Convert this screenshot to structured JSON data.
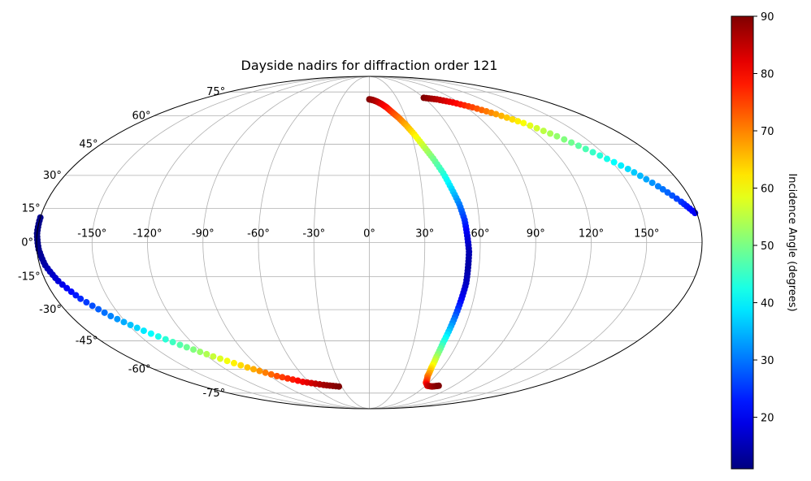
{
  "chart_data": {
    "type": "scatter",
    "projection": "mollweide",
    "title": "Dayside nadirs for diffraction order 121",
    "grid": true,
    "lon_ticks": [
      -150,
      -120,
      -90,
      -60,
      -30,
      0,
      30,
      60,
      90,
      120,
      150
    ],
    "lon_tick_labels": [
      "-150°",
      "-120°",
      "-90°",
      "-60°",
      "-30°",
      "0°",
      "30°",
      "60°",
      "90°",
      "120°",
      "150°"
    ],
    "lat_ticks": [
      75,
      60,
      45,
      30,
      15,
      0,
      -15,
      -30,
      -45,
      -60,
      -75
    ],
    "lat_tick_labels": [
      "75°",
      "60°",
      "45°",
      "30°",
      "15°",
      "0°",
      "-15°",
      "-30°",
      "-45°",
      "-60°",
      "-75°"
    ],
    "colorbar": {
      "label": "Incidence Angle (degrees)",
      "range": [
        11,
        90
      ],
      "ticks": [
        20,
        30,
        40,
        50,
        60,
        70,
        80,
        90
      ],
      "colormap": "jet"
    },
    "series": [
      {
        "points": [
          {
            "lon": 0,
            "lat": 70,
            "inc": 90
          },
          {
            "lon": 4,
            "lat": 69.5,
            "inc": 88
          },
          {
            "lon": 8,
            "lat": 68.5,
            "inc": 86
          },
          {
            "lon": 12,
            "lat": 67,
            "inc": 83
          },
          {
            "lon": 16,
            "lat": 65,
            "inc": 80
          },
          {
            "lon": 20,
            "lat": 62,
            "inc": 76
          },
          {
            "lon": 24,
            "lat": 59,
            "inc": 72
          },
          {
            "lon": 28,
            "lat": 55,
            "inc": 67
          },
          {
            "lon": 32,
            "lat": 50,
            "inc": 62
          },
          {
            "lon": 36,
            "lat": 44,
            "inc": 56
          },
          {
            "lon": 40,
            "lat": 38,
            "inc": 50
          },
          {
            "lon": 44,
            "lat": 31,
            "inc": 44
          },
          {
            "lon": 47,
            "lat": 24,
            "inc": 38
          },
          {
            "lon": 50,
            "lat": 17,
            "inc": 31
          },
          {
            "lon": 52,
            "lat": 10,
            "inc": 25
          },
          {
            "lon": 53,
            "lat": 3,
            "inc": 19
          },
          {
            "lon": 54,
            "lat": -4,
            "inc": 15
          },
          {
            "lon": 54,
            "lat": -11,
            "inc": 14
          },
          {
            "lon": 54,
            "lat": -18,
            "inc": 16
          },
          {
            "lon": 53,
            "lat": -25,
            "inc": 20
          },
          {
            "lon": 52,
            "lat": -32,
            "inc": 27
          },
          {
            "lon": 51,
            "lat": -39,
            "inc": 35
          },
          {
            "lon": 50,
            "lat": -46,
            "inc": 44
          },
          {
            "lon": 50,
            "lat": -53,
            "inc": 53
          },
          {
            "lon": 51,
            "lat": -59,
            "inc": 62
          },
          {
            "lon": 53,
            "lat": -64,
            "inc": 70
          },
          {
            "lon": 57,
            "lat": -68,
            "inc": 77
          },
          {
            "lon": 62,
            "lat": -70,
            "inc": 83
          },
          {
            "lon": 68,
            "lat": -70.5,
            "inc": 87
          },
          {
            "lon": 74,
            "lat": -70,
            "inc": 90
          }
        ]
      },
      {
        "points": [
          {
            "lon": 60,
            "lat": 71,
            "inc": 90
          },
          {
            "lon": 72,
            "lat": 70,
            "inc": 86
          },
          {
            "lon": 84,
            "lat": 68,
            "inc": 81
          },
          {
            "lon": 96,
            "lat": 65,
            "inc": 75
          },
          {
            "lon": 108,
            "lat": 61,
            "inc": 68
          },
          {
            "lon": 120,
            "lat": 56,
            "inc": 60
          },
          {
            "lon": 132,
            "lat": 49,
            "inc": 52
          },
          {
            "lon": 144,
            "lat": 41,
            "inc": 45
          },
          {
            "lon": 156,
            "lat": 33,
            "inc": 38
          },
          {
            "lon": 166,
            "lat": 25,
            "inc": 31
          },
          {
            "lon": 174,
            "lat": 18,
            "inc": 25
          },
          {
            "lon": 179,
            "lat": 13,
            "inc": 20
          }
        ]
      },
      {
        "points": [
          {
            "lon": -180,
            "lat": 11,
            "inc": 12
          },
          {
            "lon": -180,
            "lat": 4,
            "inc": 11
          },
          {
            "lon": -179,
            "lat": -3,
            "inc": 12
          },
          {
            "lon": -177,
            "lat": -10,
            "inc": 14
          },
          {
            "lon": -173,
            "lat": -17,
            "inc": 18
          },
          {
            "lon": -166,
            "lat": -25,
            "inc": 24
          },
          {
            "lon": -156,
            "lat": -33,
            "inc": 31
          },
          {
            "lon": -144,
            "lat": -40,
            "inc": 39
          },
          {
            "lon": -130,
            "lat": -47,
            "inc": 47
          },
          {
            "lon": -116,
            "lat": -53,
            "inc": 56
          },
          {
            "lon": -100,
            "lat": -59,
            "inc": 65
          },
          {
            "lon": -84,
            "lat": -64,
            "inc": 74
          },
          {
            "lon": -66,
            "lat": -67.5,
            "inc": 81
          },
          {
            "lon": -48,
            "lat": -69.5,
            "inc": 87
          },
          {
            "lon": -33,
            "lat": -70.5,
            "inc": 90
          }
        ]
      }
    ]
  }
}
